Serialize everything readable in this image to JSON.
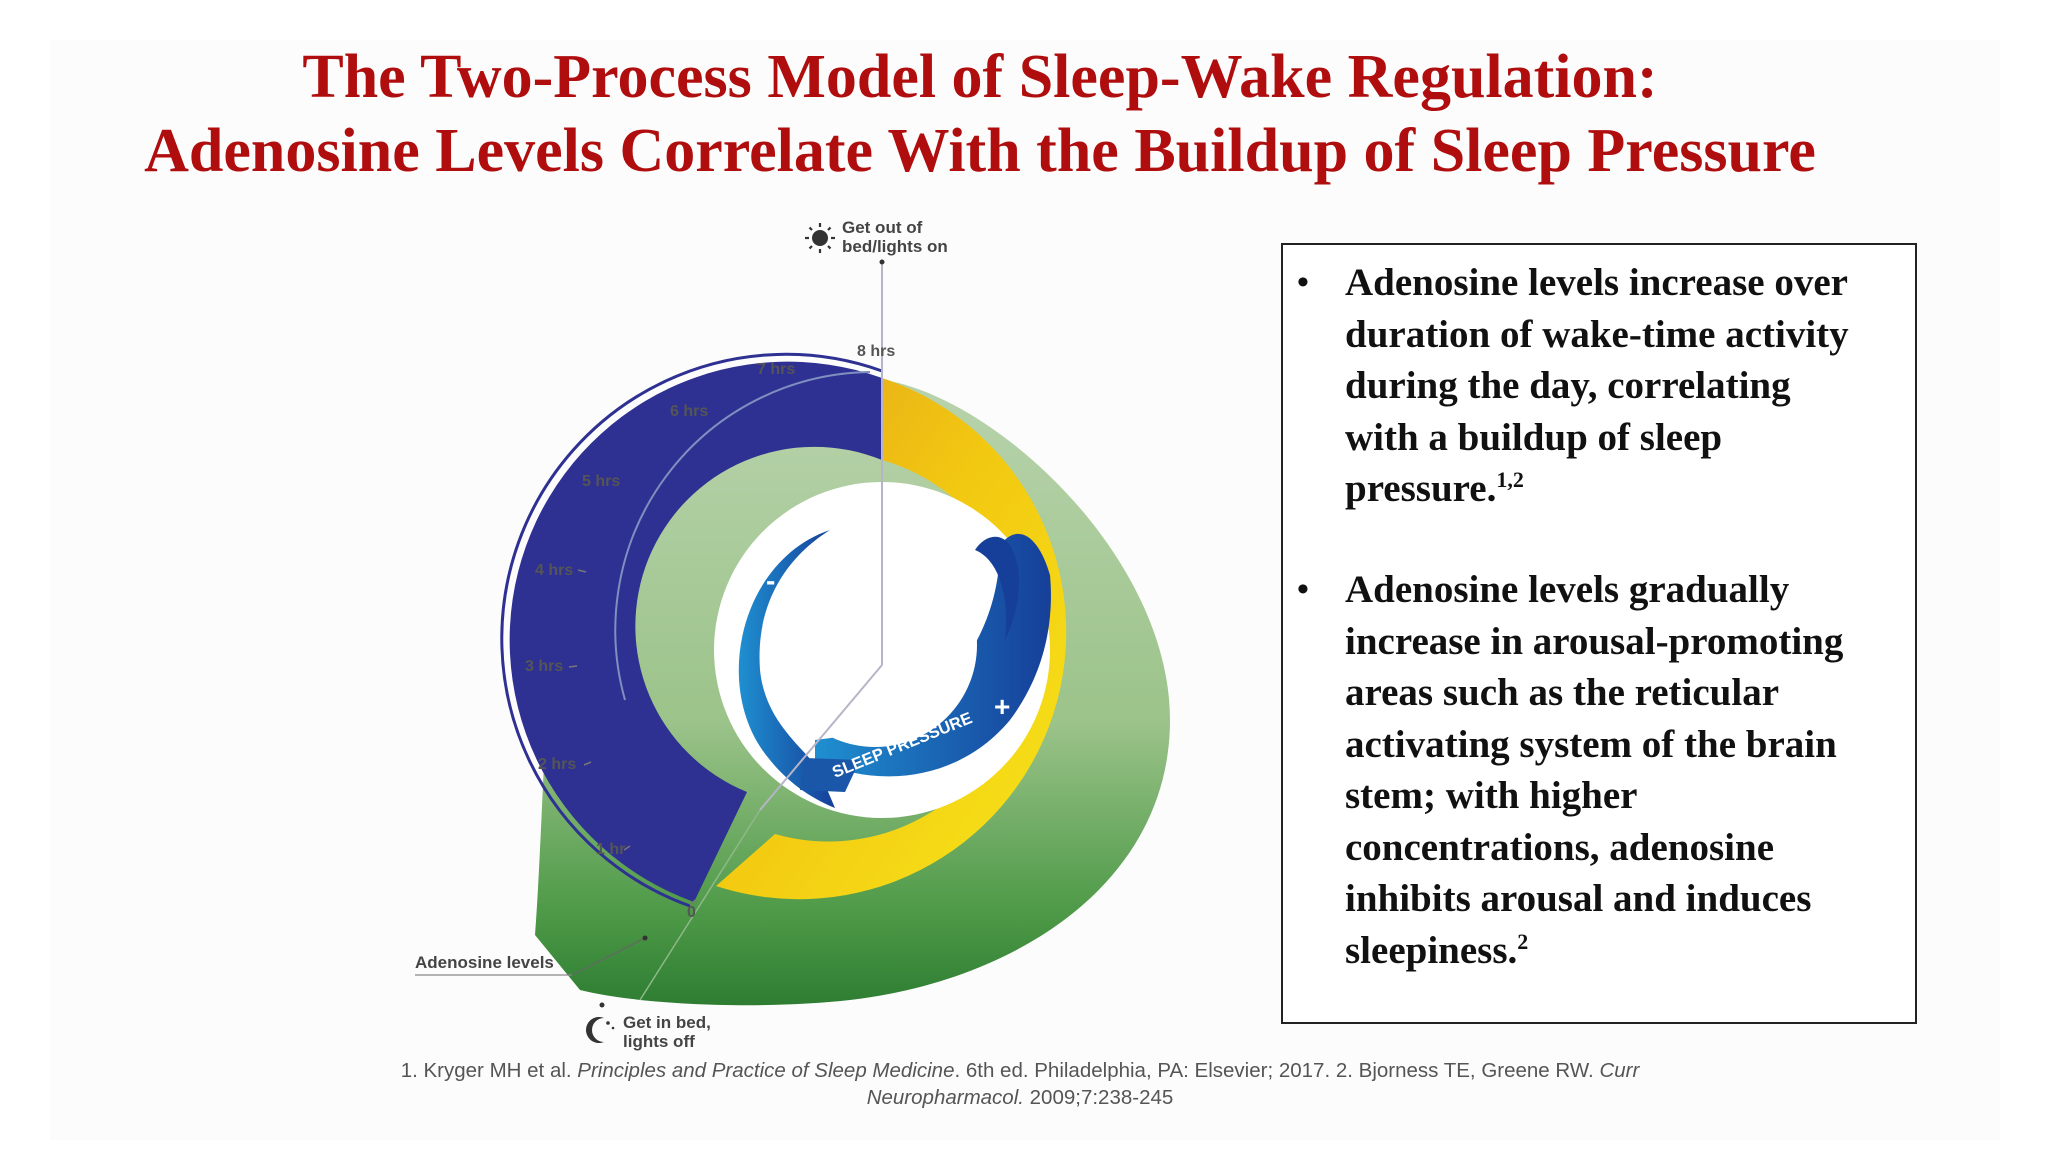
{
  "title": {
    "line1": "The Two-Process Model of Sleep-Wake Regulation:",
    "line2": "Adenosine Levels Correlate With the Buildup of Sleep Pressure"
  },
  "diagram": {
    "top_label_line1": "Get out of",
    "top_label_line2": "bed/lights on",
    "bottom_label_line1": "Get in bed,",
    "bottom_label_line2": "lights off",
    "adenosine_label": "Adenosine levels",
    "sleep_pressure_label": "SLEEP PRESSURE",
    "minus_symbol": "-",
    "plus_symbol": "+",
    "hour_labels": [
      "0",
      "1 hr",
      "2 hrs",
      "3 hrs",
      "4 hrs",
      "5 hrs",
      "6 hrs",
      "7 hrs",
      "8 hrs"
    ],
    "icons": {
      "top": "sun-icon",
      "bottom": "moon-stars-icon"
    },
    "colors": {
      "sleep_arc": "#2e3192",
      "wake_arc": "#f2c811",
      "adenosine_outer": "#a9c99b",
      "adenosine_dark": "#2e7d32",
      "pressure_blue": "#1b67b3",
      "title_red": "#b00e0e"
    }
  },
  "bullets": [
    {
      "lines": [
        "Adenosine levels increase over",
        "duration of wake-time activity",
        "during the day, correlating",
        "with a buildup of sleep",
        "pressure."
      ],
      "superscript": "1,2"
    },
    {
      "lines": [
        "Adenosine levels gradually",
        "increase in arousal-promoting",
        "areas such as the reticular",
        "activating system of the brain",
        "stem; with higher",
        "concentrations, adenosine",
        "inhibits arousal and induces",
        "sleepiness."
      ],
      "superscript": "2"
    }
  ],
  "references": {
    "ref1_prefix": "1. Kryger MH et al. ",
    "ref1_title": "Principles and Practice of Sleep Medicine",
    "ref1_suffix": ". 6th ed. Philadelphia, PA: Elsevier; 2017. 2. Bjorness TE, Greene RW. ",
    "ref2_journal_a": "Curr",
    "ref2_journal_b": "Neuropharmacol.",
    "ref2_suffix": " 2009;7:238-245"
  }
}
